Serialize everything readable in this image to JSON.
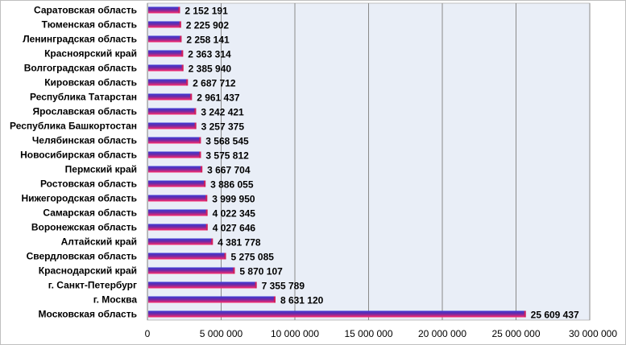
{
  "chart_data": {
    "type": "bar",
    "orientation": "horizontal",
    "categories": [
      "Саратовская область",
      "Тюменская область",
      "Ленинградская область",
      "Красноярский край",
      "Волгоградская область",
      "Кировская область",
      "Республика Татарстан",
      "Ярославская область",
      "Республика Башкортостан",
      "Челябинская область",
      "Новосибирская область",
      "Пермский край",
      "Ростовская область",
      "Нижегородская область",
      "Самарская область",
      "Воронежская область",
      "Алтайский край",
      "Свердловская область",
      "Краснодарский край",
      "г. Санкт-Петербург",
      "г. Москва",
      "Московская область"
    ],
    "values": [
      2152191,
      2225902,
      2258141,
      2363314,
      2385940,
      2687712,
      2961437,
      3242421,
      3257375,
      3568545,
      3575812,
      3667704,
      3886055,
      3999950,
      4022345,
      4027646,
      4381778,
      5275085,
      5870107,
      7355789,
      8631120,
      25609437
    ],
    "value_labels": [
      "2 152 191",
      "2 225 902",
      "2 258 141",
      "2 363 314",
      "2 385 940",
      "2 687 712",
      "2 961 437",
      "3 242 421",
      "3 257 375",
      "3 568 545",
      "3 575 812",
      "3 667 704",
      "3 886 055",
      "3 999 950",
      "4 022 345",
      "4 027 646",
      "4 381 778",
      "5 275 085",
      "5 870 107",
      "7 355 789",
      "8 631 120",
      "25 609 437"
    ],
    "xticks": [
      0,
      5000000,
      10000000,
      15000000,
      20000000,
      25000000,
      30000000
    ],
    "xtick_labels": [
      "0",
      "5 000 000",
      "10 000 000",
      "15 000 000",
      "20 000 000",
      "25 000 000",
      "30 000 000"
    ],
    "xlim": [
      0,
      30000000
    ],
    "title": "",
    "xlabel": "",
    "ylabel": "",
    "grid": "vertical",
    "legend": "none",
    "colors": {
      "plot_background": "#e9eef7",
      "grid": "#8a8a8a",
      "bar_top": "#3b3bd6",
      "bar_bottom": "#ff2a6a",
      "bar_stripe": "#d41f5a",
      "frame": "#bfbfbf"
    }
  }
}
